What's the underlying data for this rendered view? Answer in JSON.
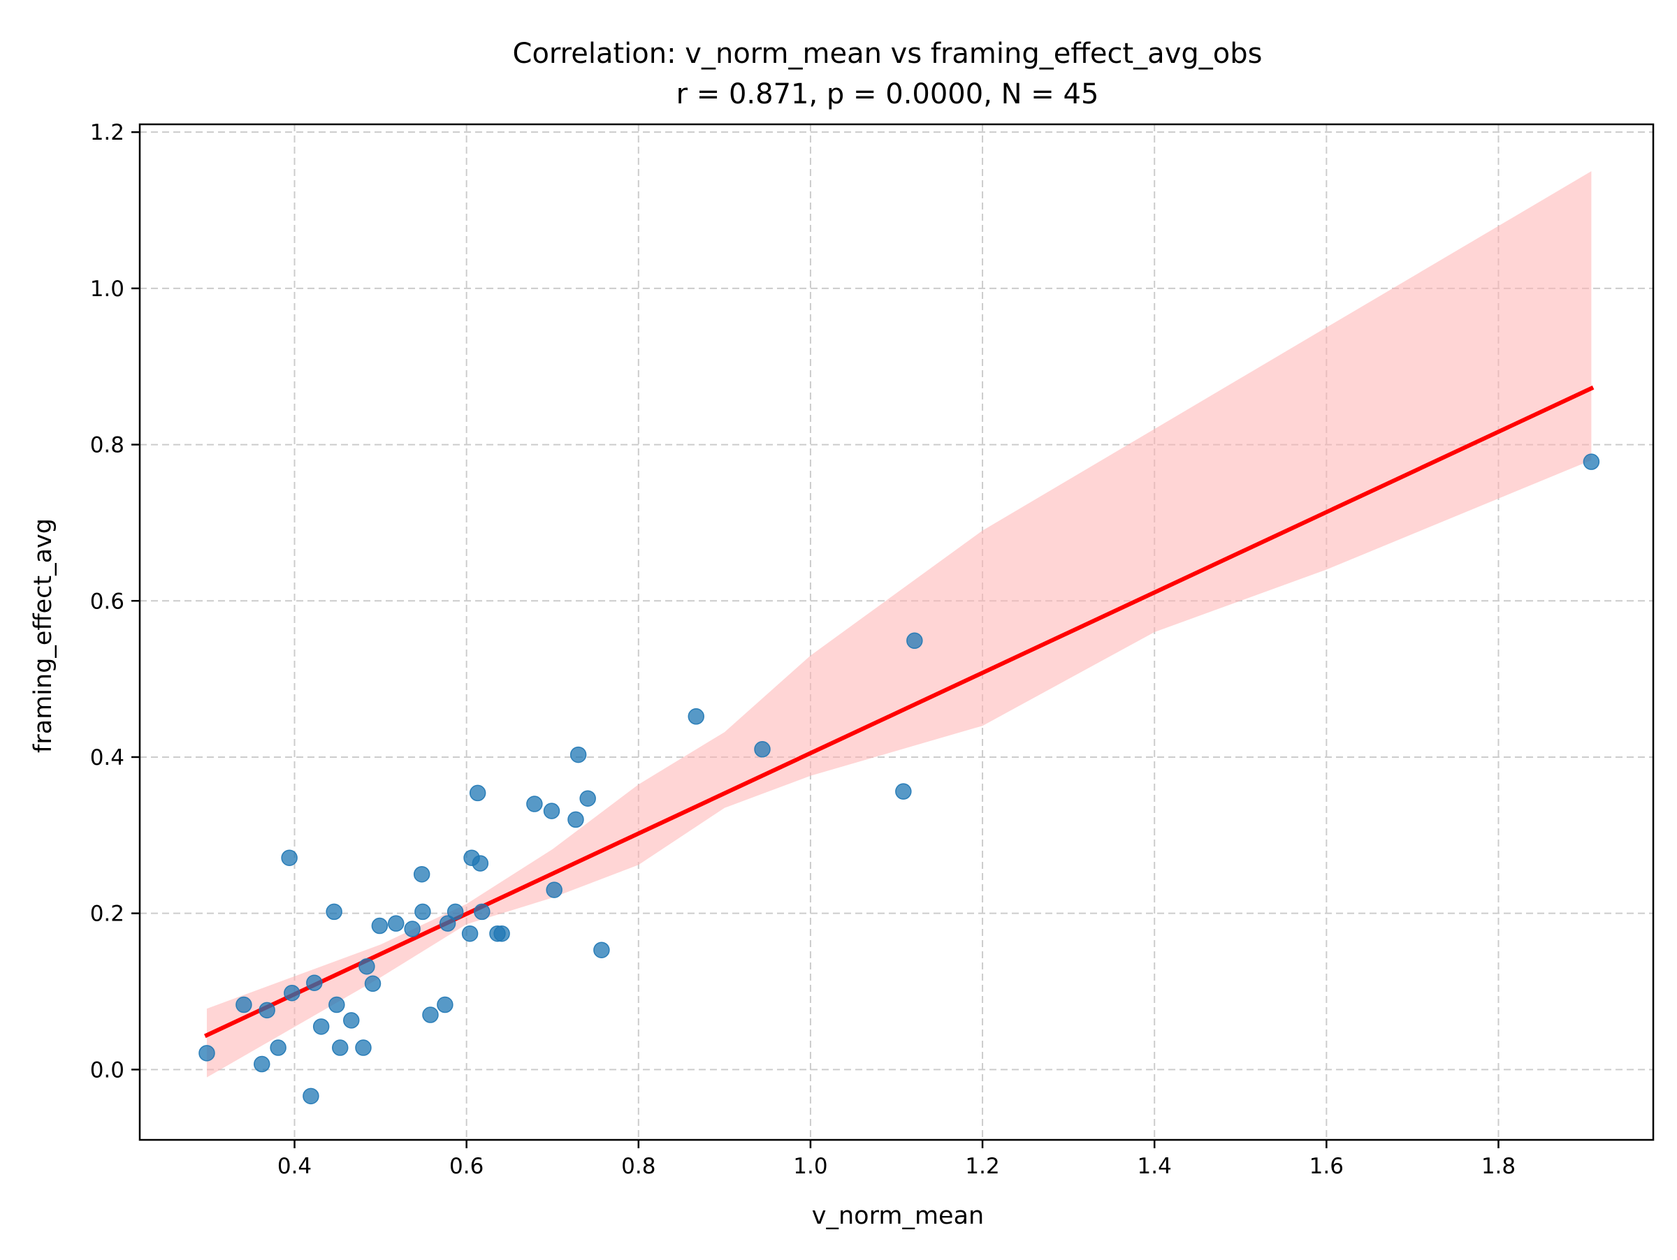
{
  "chart_data": {
    "type": "scatter",
    "title": "Correlation: v_norm_mean vs framing_effect_avg_obs",
    "subtitle": "r = 0.871, p = 0.0000, N = 45",
    "xlabel": "v_norm_mean",
    "ylabel": "framing_effect_avg",
    "xlim": [
      0.22,
      1.98
    ],
    "ylim": [
      -0.09,
      1.21
    ],
    "xticks": [
      0.4,
      0.6,
      0.8,
      1.0,
      1.2,
      1.4,
      1.6,
      1.8
    ],
    "xtick_labels": [
      "0.4",
      "0.6",
      "0.8",
      "1.0",
      "1.2",
      "1.4",
      "1.6",
      "1.8"
    ],
    "yticks": [
      0.0,
      0.2,
      0.4,
      0.6,
      0.8,
      1.0,
      1.2
    ],
    "ytick_labels": [
      "0.0",
      "0.2",
      "0.4",
      "0.6",
      "0.8",
      "1.0",
      "1.2"
    ],
    "grid": true,
    "colors": {
      "points": "#1f77b4",
      "regression_line": "#ff0000",
      "confidence_band": "#ffb3b3",
      "grid": "#cccccc"
    },
    "points": [
      {
        "x": 0.298,
        "y": 0.021
      },
      {
        "x": 0.341,
        "y": 0.083
      },
      {
        "x": 0.362,
        "y": 0.007
      },
      {
        "x": 0.368,
        "y": 0.076
      },
      {
        "x": 0.381,
        "y": 0.028
      },
      {
        "x": 0.394,
        "y": 0.271
      },
      {
        "x": 0.397,
        "y": 0.098
      },
      {
        "x": 0.419,
        "y": -0.034
      },
      {
        "x": 0.423,
        "y": 0.111
      },
      {
        "x": 0.431,
        "y": 0.055
      },
      {
        "x": 0.446,
        "y": 0.202
      },
      {
        "x": 0.449,
        "y": 0.083
      },
      {
        "x": 0.453,
        "y": 0.028
      },
      {
        "x": 0.466,
        "y": 0.063
      },
      {
        "x": 0.48,
        "y": 0.028
      },
      {
        "x": 0.484,
        "y": 0.132
      },
      {
        "x": 0.491,
        "y": 0.11
      },
      {
        "x": 0.499,
        "y": 0.184
      },
      {
        "x": 0.518,
        "y": 0.187
      },
      {
        "x": 0.537,
        "y": 0.18
      },
      {
        "x": 0.548,
        "y": 0.25
      },
      {
        "x": 0.549,
        "y": 0.202
      },
      {
        "x": 0.558,
        "y": 0.07
      },
      {
        "x": 0.575,
        "y": 0.083
      },
      {
        "x": 0.578,
        "y": 0.187
      },
      {
        "x": 0.587,
        "y": 0.202
      },
      {
        "x": 0.604,
        "y": 0.174
      },
      {
        "x": 0.606,
        "y": 0.271
      },
      {
        "x": 0.613,
        "y": 0.354
      },
      {
        "x": 0.616,
        "y": 0.264
      },
      {
        "x": 0.618,
        "y": 0.202
      },
      {
        "x": 0.636,
        "y": 0.174
      },
      {
        "x": 0.641,
        "y": 0.174
      },
      {
        "x": 0.679,
        "y": 0.34
      },
      {
        "x": 0.699,
        "y": 0.331
      },
      {
        "x": 0.702,
        "y": 0.23
      },
      {
        "x": 0.727,
        "y": 0.32
      },
      {
        "x": 0.73,
        "y": 0.403
      },
      {
        "x": 0.741,
        "y": 0.347
      },
      {
        "x": 0.757,
        "y": 0.153
      },
      {
        "x": 0.867,
        "y": 0.452
      },
      {
        "x": 0.944,
        "y": 0.41
      },
      {
        "x": 1.108,
        "y": 0.356
      },
      {
        "x": 1.121,
        "y": 0.549
      },
      {
        "x": 1.908,
        "y": 0.778
      }
    ],
    "regression": {
      "x_start": 0.298,
      "y_start": 0.044,
      "x_end": 1.908,
      "y_end": 0.872
    },
    "confidence_band": [
      {
        "x": 0.298,
        "upper": 0.078,
        "lower": -0.01
      },
      {
        "x": 0.5,
        "upper": 0.16,
        "lower": 0.118
      },
      {
        "x": 0.6,
        "upper": 0.212,
        "lower": 0.186
      },
      {
        "x": 0.7,
        "upper": 0.282,
        "lower": 0.22
      },
      {
        "x": 0.8,
        "upper": 0.365,
        "lower": 0.262
      },
      {
        "x": 0.9,
        "upper": 0.432,
        "lower": 0.335
      },
      {
        "x": 1.0,
        "upper": 0.53,
        "lower": 0.376
      },
      {
        "x": 1.2,
        "upper": 0.69,
        "lower": 0.44
      },
      {
        "x": 1.4,
        "upper": 0.82,
        "lower": 0.56
      },
      {
        "x": 1.6,
        "upper": 0.95,
        "lower": 0.64
      },
      {
        "x": 1.908,
        "upper": 1.15,
        "lower": 0.78
      }
    ]
  }
}
